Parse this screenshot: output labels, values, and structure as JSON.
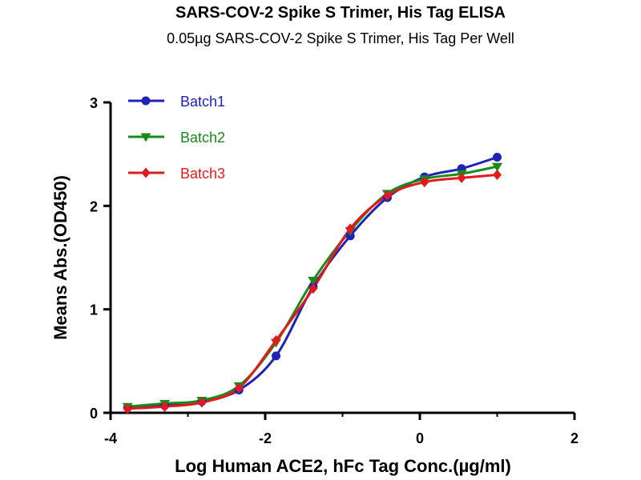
{
  "chart_data": {
    "type": "line",
    "title": "SARS-COV-2 Spike S Trimer, His Tag ELISA",
    "subtitle": "0.05µg SARS-COV-2 Spike S Trimer, His Tag Per Well",
    "xlabel": "Log Human ACE2, hFc Tag Conc.(µg/ml)",
    "ylabel": "Means Abs.(OD450)",
    "xlim": [
      -4,
      2
    ],
    "ylim": [
      0,
      3
    ],
    "xticks": [
      "-4",
      "-2",
      "0",
      "2"
    ],
    "yticks": [
      "0",
      "1",
      "2",
      "3"
    ],
    "grid": false,
    "legend_position": "top-left",
    "x": [
      -3.78,
      -3.3,
      -2.82,
      -2.34,
      -1.86,
      -1.38,
      -0.9,
      -0.42,
      0.06,
      0.54,
      1.0
    ],
    "series": [
      {
        "name": "Batch1",
        "color": "#1f22b8",
        "marker": "circle",
        "values": [
          0.05,
          0.07,
          0.11,
          0.22,
          0.55,
          1.22,
          1.71,
          2.08,
          2.28,
          2.36,
          2.47
        ]
      },
      {
        "name": "Batch2",
        "color": "#1a8a1a",
        "marker": "triangle-down",
        "values": [
          0.06,
          0.09,
          0.12,
          0.26,
          0.68,
          1.28,
          1.76,
          2.12,
          2.26,
          2.31,
          2.38
        ]
      },
      {
        "name": "Batch3",
        "color": "#e31a1c",
        "marker": "diamond",
        "values": [
          0.04,
          0.06,
          0.1,
          0.24,
          0.7,
          1.2,
          1.78,
          2.1,
          2.23,
          2.27,
          2.3
        ]
      }
    ]
  }
}
